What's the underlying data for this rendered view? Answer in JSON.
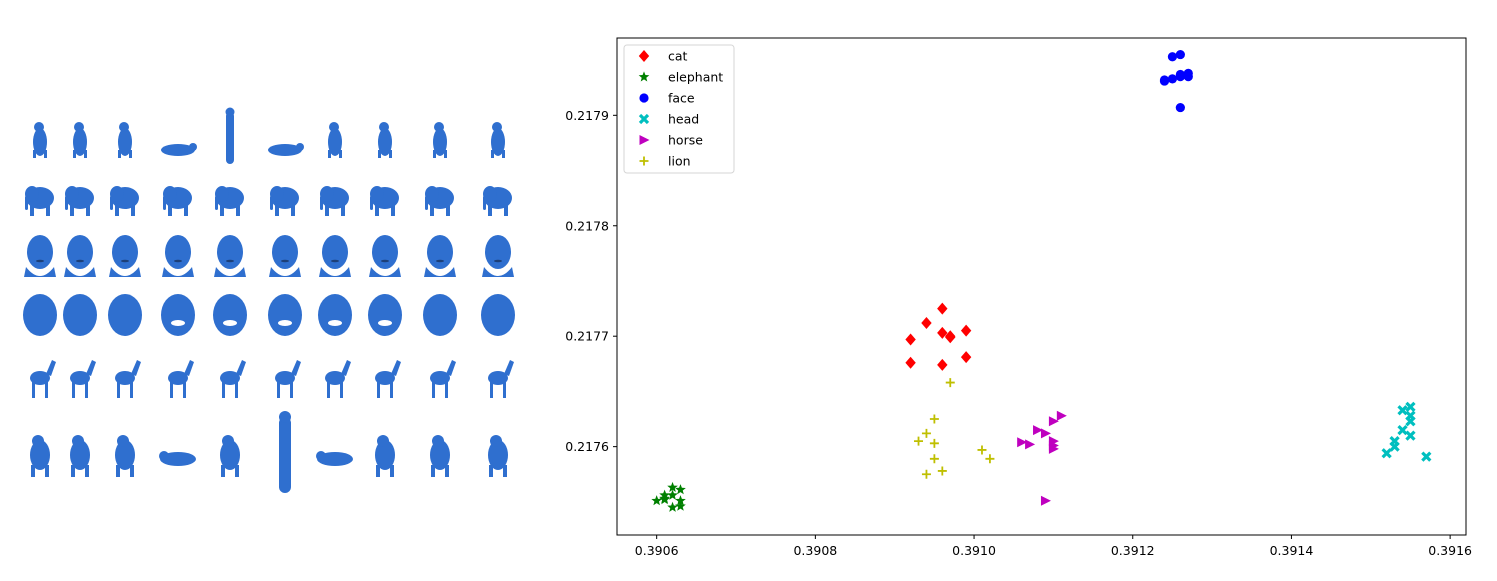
{
  "shapes_panel": {
    "rows": [
      {
        "category": "cat",
        "icon": "cat-shape-icon",
        "count": 10
      },
      {
        "category": "elephant",
        "icon": "elephant-shape-icon",
        "count": 10
      },
      {
        "category": "head",
        "icon": "head-shape-icon",
        "count": 10
      },
      {
        "category": "face",
        "icon": "face-shape-icon",
        "count": 10
      },
      {
        "category": "horse",
        "icon": "horse-shape-icon",
        "count": 10
      },
      {
        "category": "lion",
        "icon": "lion-shape-icon",
        "count": 10
      }
    ],
    "color": "#2f6fcf"
  },
  "chart_data": {
    "type": "scatter",
    "title": "",
    "xlabel": "",
    "ylabel": "",
    "xlim": [
      0.39055,
      0.39162
    ],
    "ylim": [
      0.21752,
      0.21797
    ],
    "xticks": [
      {
        "value": 0.3906,
        "label": "0.3906"
      },
      {
        "value": 0.3908,
        "label": "0.3908"
      },
      {
        "value": 0.391,
        "label": "0.3910"
      },
      {
        "value": 0.3912,
        "label": "0.3912"
      },
      {
        "value": 0.3914,
        "label": "0.3914"
      },
      {
        "value": 0.3916,
        "label": "0.3916"
      }
    ],
    "yticks": [
      {
        "value": 0.2176,
        "label": "0.2176"
      },
      {
        "value": 0.2177,
        "label": "0.2177"
      },
      {
        "value": 0.2178,
        "label": "0.2178"
      },
      {
        "value": 0.2179,
        "label": "0.2179"
      }
    ],
    "grid": false,
    "legend_position": "top-left",
    "series": [
      {
        "name": "cat",
        "marker": "diamond",
        "color": "#ff0000",
        "points": [
          [
            0.39092,
            0.217697
          ],
          [
            0.39094,
            0.217712
          ],
          [
            0.39096,
            0.217725
          ],
          [
            0.39096,
            0.217703
          ],
          [
            0.39097,
            0.2177
          ],
          [
            0.39099,
            0.217705
          ],
          [
            0.39097,
            0.217699
          ],
          [
            0.39092,
            0.217676
          ],
          [
            0.39096,
            0.217674
          ],
          [
            0.39099,
            0.217681
          ]
        ]
      },
      {
        "name": "elephant",
        "marker": "star",
        "color": "#008000",
        "points": [
          [
            0.39061,
            0.217556
          ],
          [
            0.39062,
            0.217563
          ],
          [
            0.39062,
            0.217556
          ],
          [
            0.39061,
            0.217553
          ],
          [
            0.3906,
            0.217551
          ],
          [
            0.39063,
            0.217561
          ],
          [
            0.39063,
            0.217551
          ],
          [
            0.39063,
            0.217546
          ],
          [
            0.39062,
            0.217545
          ],
          [
            0.39061,
            0.217552
          ]
        ]
      },
      {
        "name": "face",
        "marker": "circle",
        "color": "#0000ff",
        "points": [
          [
            0.39125,
            0.217953
          ],
          [
            0.39126,
            0.217955
          ],
          [
            0.39124,
            0.217931
          ],
          [
            0.39125,
            0.217933
          ],
          [
            0.39126,
            0.217937
          ],
          [
            0.39127,
            0.217935
          ],
          [
            0.39127,
            0.217938
          ],
          [
            0.39126,
            0.217935
          ],
          [
            0.39126,
            0.217907
          ],
          [
            0.39124,
            0.217932
          ]
        ]
      },
      {
        "name": "head",
        "marker": "x",
        "color": "#00bfbf",
        "points": [
          [
            0.39154,
            0.217633
          ],
          [
            0.39155,
            0.217636
          ],
          [
            0.39155,
            0.217628
          ],
          [
            0.39155,
            0.217623
          ],
          [
            0.39154,
            0.217615
          ],
          [
            0.39155,
            0.21761
          ],
          [
            0.39153,
            0.217605
          ],
          [
            0.39153,
            0.2176
          ],
          [
            0.39152,
            0.217594
          ],
          [
            0.39157,
            0.217591
          ]
        ]
      },
      {
        "name": "horse",
        "marker": "triangle-right",
        "color": "#bf00bf",
        "points": [
          [
            0.39111,
            0.217628
          ],
          [
            0.3911,
            0.217623
          ],
          [
            0.39108,
            0.217615
          ],
          [
            0.39109,
            0.217612
          ],
          [
            0.3911,
            0.217605
          ],
          [
            0.3911,
            0.217601
          ],
          [
            0.3911,
            0.217598
          ],
          [
            0.39106,
            0.217604
          ],
          [
            0.39107,
            0.217602
          ],
          [
            0.39109,
            0.217551
          ]
        ]
      },
      {
        "name": "lion",
        "marker": "plus",
        "color": "#bfbf00",
        "points": [
          [
            0.39097,
            0.217658
          ],
          [
            0.39095,
            0.217625
          ],
          [
            0.39094,
            0.217612
          ],
          [
            0.39093,
            0.217605
          ],
          [
            0.39095,
            0.217603
          ],
          [
            0.39101,
            0.217597
          ],
          [
            0.39102,
            0.217589
          ],
          [
            0.39095,
            0.217589
          ],
          [
            0.39096,
            0.217578
          ],
          [
            0.39094,
            0.217575
          ]
        ]
      }
    ]
  }
}
